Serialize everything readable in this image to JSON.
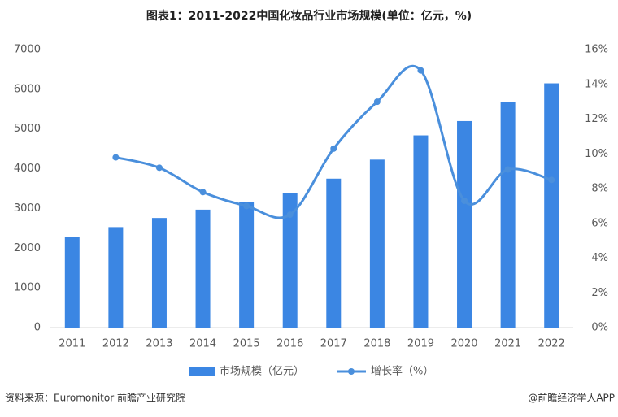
{
  "chart_data": {
    "type": "bar_line",
    "title": "图表1：2011-2022中国化妆品行业市场规模(单位：亿元，%)",
    "categories": [
      "2011",
      "2012",
      "2013",
      "2014",
      "2015",
      "2016",
      "2017",
      "2018",
      "2019",
      "2020",
      "2021",
      "2022"
    ],
    "series": [
      {
        "name": "市场规模（亿元）",
        "type": "bar",
        "color": "#3b86e3",
        "values": [
          2290,
          2530,
          2760,
          2970,
          3160,
          3380,
          3750,
          4230,
          4840,
          5200,
          5680,
          6150
        ]
      },
      {
        "name": "增长率（%）",
        "type": "line",
        "axis": "y2",
        "color": "#4a8fdc",
        "values": [
          null,
          9.8,
          9.2,
          7.8,
          7.0,
          6.5,
          10.3,
          13.0,
          14.8,
          7.3,
          9.1,
          8.5
        ]
      }
    ],
    "ylim": [
      0,
      7000
    ],
    "yticks": [
      0,
      1000,
      2000,
      3000,
      4000,
      5000,
      6000,
      7000
    ],
    "y2lim": [
      0,
      16
    ],
    "y2ticks": [
      {
        "value": 0,
        "label": "0%"
      },
      {
        "value": 2,
        "label": "2%"
      },
      {
        "value": 4,
        "label": "4%"
      },
      {
        "value": 6,
        "label": "6%"
      },
      {
        "value": 8,
        "label": "8%"
      },
      {
        "value": 10,
        "label": "10%"
      },
      {
        "value": 12,
        "label": "12%"
      },
      {
        "value": 14,
        "label": "14%"
      },
      {
        "value": 16,
        "label": "16%"
      }
    ],
    "source": "资料来源：Euromonitor 前瞻产业研究院",
    "credit": "@前瞻经济学人APP"
  }
}
